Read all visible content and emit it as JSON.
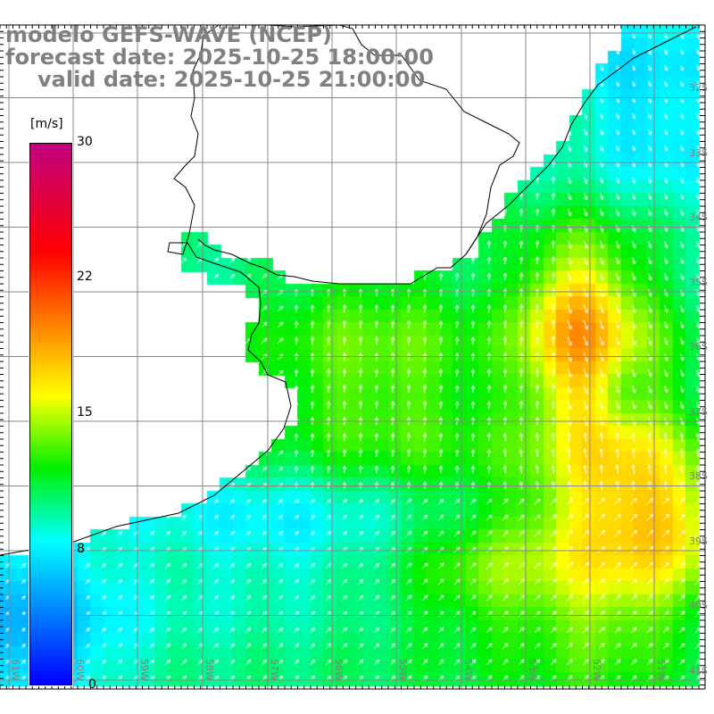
{
  "title": {
    "line1": "modelo GEFS-WAVE (NCEP)",
    "line2": "forecast date: 2025-10-25 18:00:00",
    "line3": "valid date: 2025-10-25 21:00:00"
  },
  "colorbar": {
    "units": "[m/s]",
    "ticks": [
      "30",
      "22",
      "15",
      "8",
      "0"
    ],
    "tick_values": [
      30,
      22,
      15,
      8,
      0
    ],
    "colors": [
      "#0000ff",
      "#00ffff",
      "#00ff00",
      "#ffff00",
      "#ff8000",
      "#ff0000",
      "#c00080"
    ]
  },
  "axes": {
    "lon_labels": [
      "61W",
      "60W",
      "59W",
      "58W",
      "57W",
      "56W",
      "55W",
      "54W",
      "53W",
      "52W",
      "51W"
    ],
    "lat_labels": [
      "32S",
      "33S",
      "34S",
      "35S",
      "36S",
      "37S",
      "38S",
      "39S",
      "40S",
      "41S"
    ]
  }
}
